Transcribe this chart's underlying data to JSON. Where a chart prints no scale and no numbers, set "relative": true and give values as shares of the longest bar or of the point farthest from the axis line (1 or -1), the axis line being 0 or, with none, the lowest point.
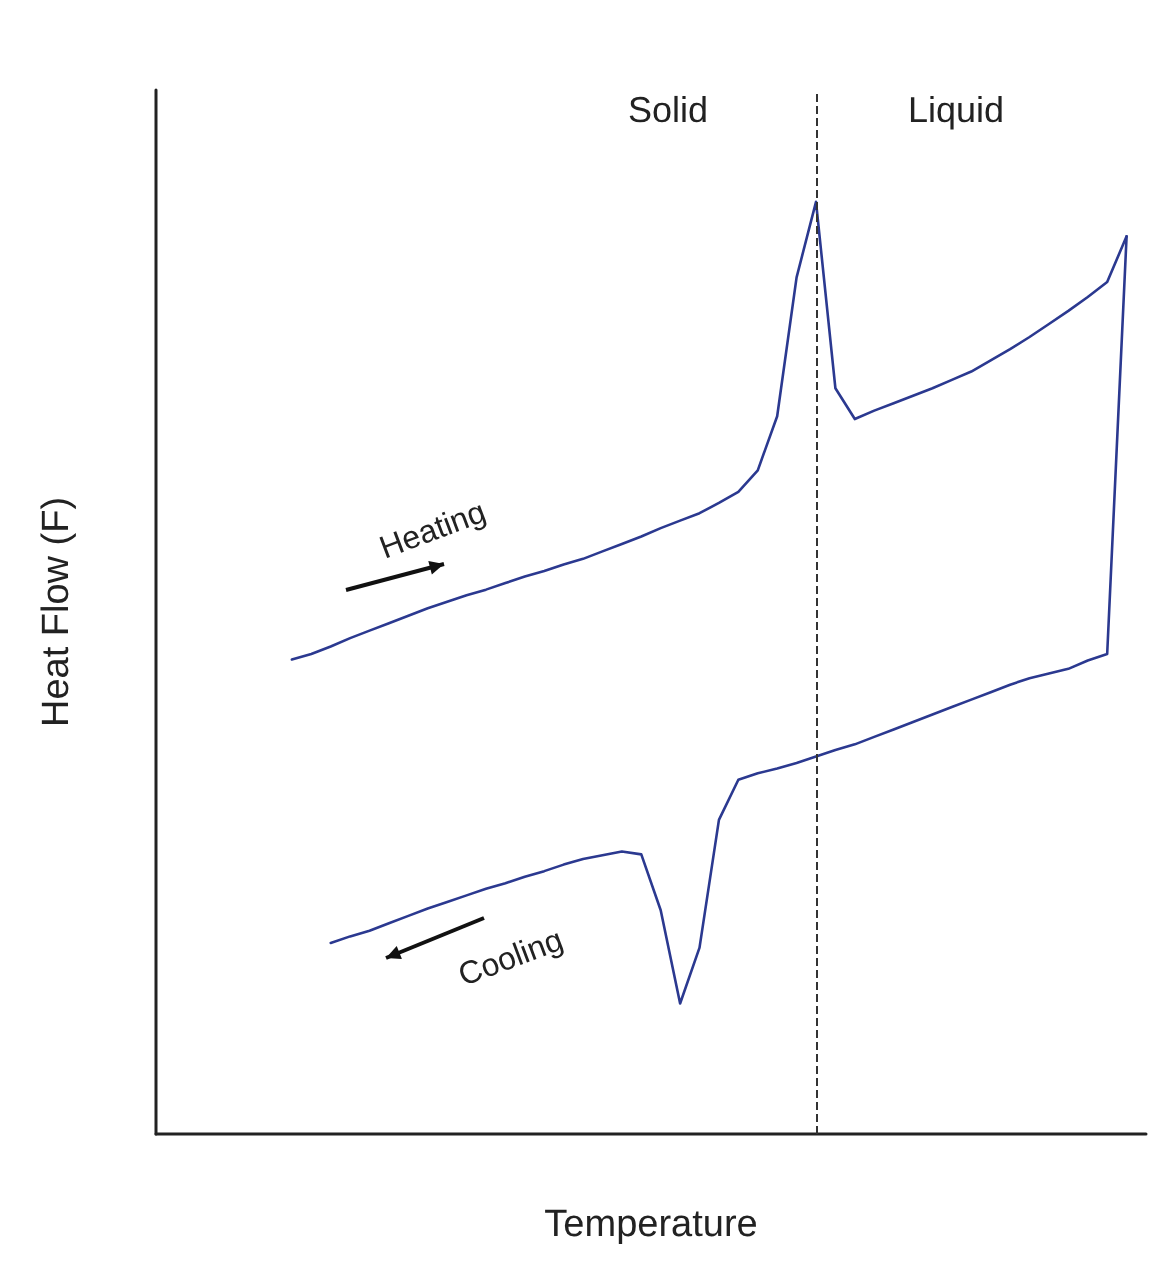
{
  "chart_data": {
    "type": "line",
    "relative": true,
    "xlabel": "Temperature",
    "ylabel": "Heat Flow (F)",
    "legend": false,
    "marker": "none",
    "line_style": "solid",
    "categories": [
      null,
      null,
      null,
      null,
      null,
      null,
      null,
      null,
      null,
      null,
      null,
      null,
      null,
      null,
      null,
      null,
      null,
      null,
      null,
      null,
      null,
      null,
      null,
      null,
      null,
      null,
      null,
      null,
      null,
      null,
      null,
      null,
      null,
      null,
      null,
      null,
      null,
      null,
      null,
      null,
      null,
      null,
      null,
      null,
      null,
      null,
      null,
      null,
      null,
      null,
      null,
      null
    ],
    "series": [
      {
        "name": "Heating",
        "color": "#2b3990",
        "values": [
          null,
          null,
          null,
          null,
          null,
          null,
          null,
          0.509,
          0.515,
          0.523,
          0.532,
          0.54,
          0.548,
          0.556,
          0.564,
          0.571,
          0.578,
          0.584,
          0.591,
          0.598,
          0.604,
          0.611,
          0.617,
          0.625,
          0.633,
          0.641,
          0.65,
          0.658,
          0.666,
          0.677,
          0.689,
          0.712,
          0.77,
          0.919,
          1.0,
          0.8,
          0.767,
          0.776,
          0.784,
          0.792,
          0.8,
          0.809,
          0.818,
          0.83,
          0.842,
          0.855,
          0.869,
          0.883,
          0.898,
          0.914,
          0.963,
          null
        ]
      },
      {
        "name": "Cooling",
        "color": "#2b3990",
        "values": [
          null,
          null,
          null,
          null,
          null,
          null,
          null,
          null,
          null,
          0.205,
          0.212,
          0.218,
          0.226,
          0.234,
          0.242,
          0.249,
          0.256,
          0.263,
          0.269,
          0.276,
          0.282,
          0.289,
          0.295,
          0.299,
          0.303,
          0.3,
          0.24,
          0.14,
          0.2,
          0.337,
          0.38,
          0.387,
          0.392,
          0.398,
          0.405,
          0.412,
          0.418,
          0.426,
          0.434,
          0.442,
          0.45,
          0.458,
          0.466,
          0.474,
          0.482,
          0.489,
          0.494,
          0.499,
          0.508,
          0.515,
          0.963,
          null
        ]
      }
    ],
    "ref_lines": [
      {
        "axis": "x",
        "color": "#333333",
        "line_style": "dashed"
      }
    ],
    "annotations": [
      "Solid",
      "Liquid"
    ]
  }
}
